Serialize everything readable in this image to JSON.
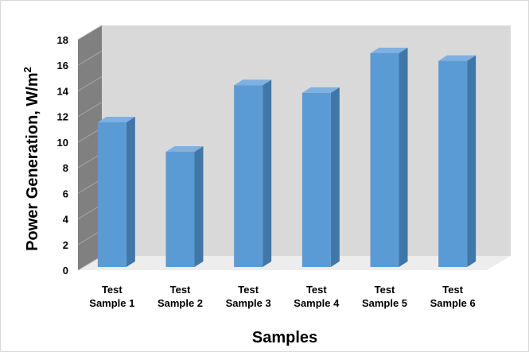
{
  "chart_data": {
    "type": "bar",
    "categories": [
      [
        "Test",
        "Sample 1"
      ],
      [
        "Test",
        "Sample 2"
      ],
      [
        "Test",
        "Sample 3"
      ],
      [
        "Test",
        "Sample 4"
      ],
      [
        "Test",
        "Sample 5"
      ],
      [
        "Test",
        "Sample 6"
      ]
    ],
    "values": [
      11.3,
      9.0,
      14.2,
      13.6,
      16.7,
      16.1
    ],
    "xlabel": "Samples",
    "ylabel": "Power Generation, W/m",
    "ylabel_superscript": "2",
    "ylim": [
      0,
      18
    ],
    "yticks": [
      0,
      2,
      4,
      6,
      8,
      10,
      12,
      14,
      16,
      18
    ],
    "style": "3d",
    "grid": false,
    "colors": {
      "bar_front": "#5B9BD5",
      "bar_side": "#3E77A8",
      "bar_top": "#7FB0E0",
      "back_wall": "#D9D9D9",
      "side_wall": "#808080",
      "floor": "#EDEDED"
    }
  }
}
